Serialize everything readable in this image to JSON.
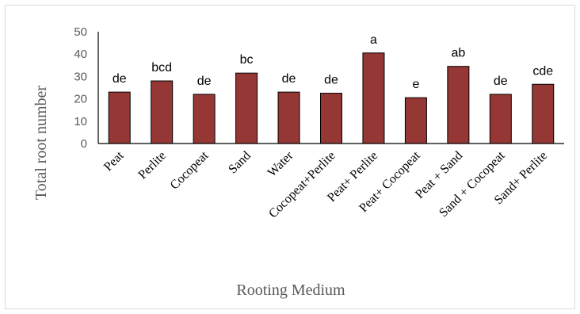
{
  "chart_data": {
    "type": "bar",
    "xlabel": "Rooting Medium",
    "ylabel": "Total root number",
    "ylim": [
      0,
      50
    ],
    "yticks": [
      0,
      10,
      20,
      30,
      40,
      50
    ],
    "grid": false,
    "bar_color": "#953735",
    "categories": [
      "Peat",
      "Perlite",
      "Cocopeat",
      "Sand",
      "Water",
      "Cocopeat+Perlite",
      "Peat+ Perlite",
      "Peat+ Cocopeat",
      "Peat + Sand",
      "Sand + Cocopeat",
      "Sand+ Perlite"
    ],
    "values": [
      23,
      28,
      22,
      31.5,
      23,
      22.5,
      40.5,
      20.5,
      34.5,
      22,
      26.5
    ],
    "bar_labels": [
      "de",
      "bcd",
      "de",
      "bc",
      "de",
      "de",
      "a",
      "e",
      "ab",
      "de",
      "cde"
    ]
  }
}
